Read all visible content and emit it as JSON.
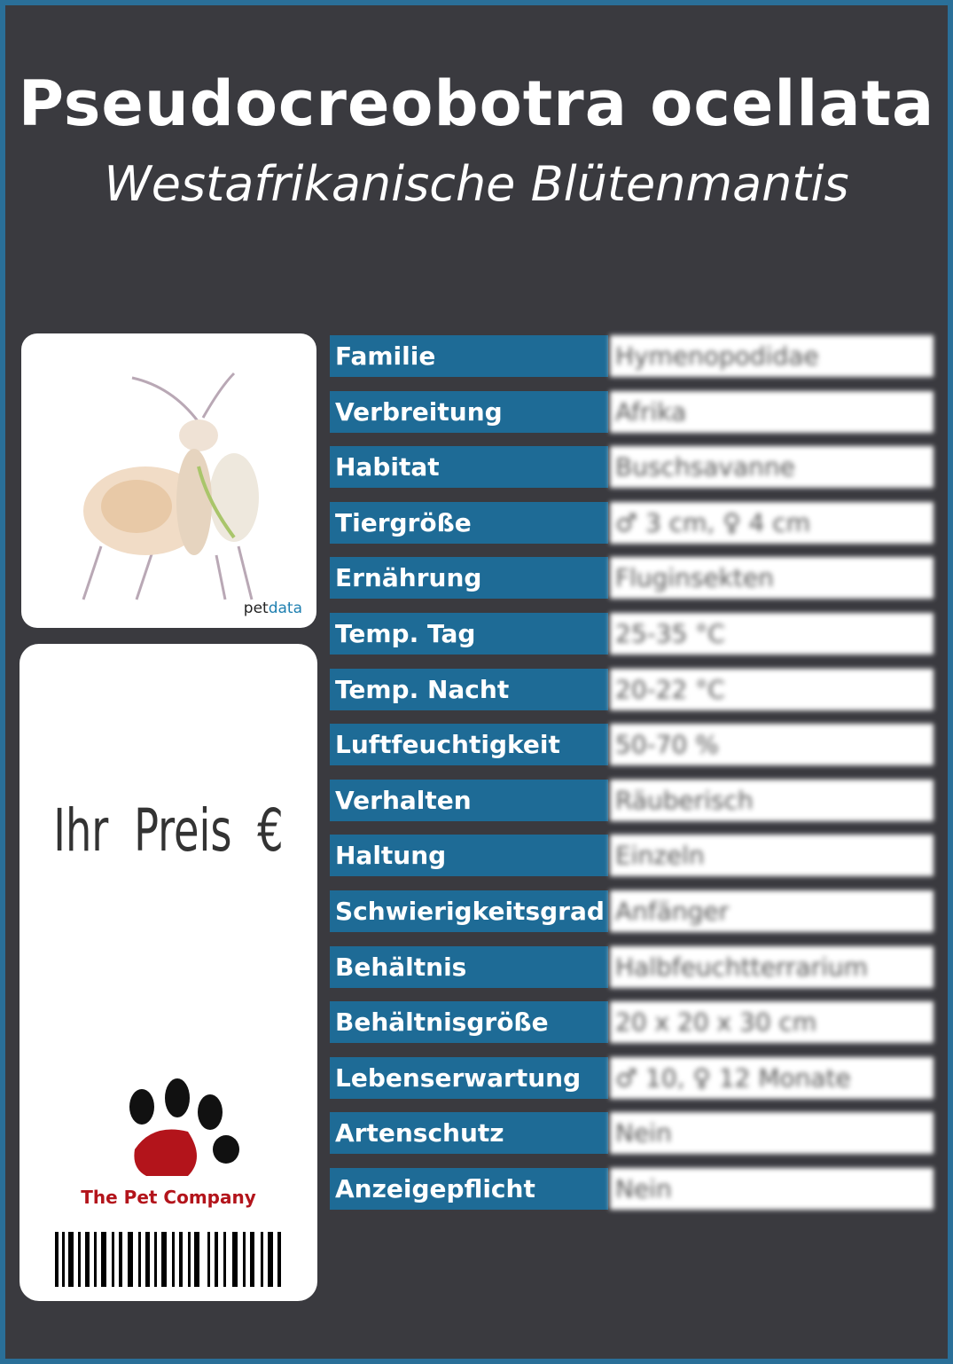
{
  "header": {
    "title": "Pseudocreobotra ocellata",
    "subtitle": "Westafrikanische Blütenmantis"
  },
  "image": {
    "logo_pet": "pet",
    "logo_data": "data"
  },
  "price": {
    "label": "Ihr Preis €"
  },
  "brand": {
    "name": "The Pet Company"
  },
  "table": {
    "rows": [
      [
        "Familie",
        "Hymenopodidae"
      ],
      [
        "Verbreitung",
        "Afrika"
      ],
      [
        "Habitat",
        "Buschsavanne"
      ],
      [
        "Tiergröße",
        "♂ 3 cm, ♀ 4 cm"
      ],
      [
        "Ernährung",
        "Fluginsekten"
      ],
      [
        "Temp. Tag",
        "25-35 °C"
      ],
      [
        "Temp. Nacht",
        "20-22 °C"
      ],
      [
        "Luftfeuchtigkeit",
        "50-70 %"
      ],
      [
        "Verhalten",
        "Räuberisch"
      ],
      [
        "Haltung",
        "Einzeln"
      ],
      [
        "Schwierigkeitsgrad",
        "Anfänger"
      ],
      [
        "Behältnis",
        "Halbfeuchtterrarium"
      ],
      [
        "Behältnisgröße",
        "20 x 20 x 30 cm"
      ],
      [
        "Lebenserwartung",
        "♂ 10, ♀ 12 Monate"
      ],
      [
        "Artenschutz",
        "Nein"
      ],
      [
        "Anzeigepflicht",
        "Nein"
      ]
    ]
  }
}
